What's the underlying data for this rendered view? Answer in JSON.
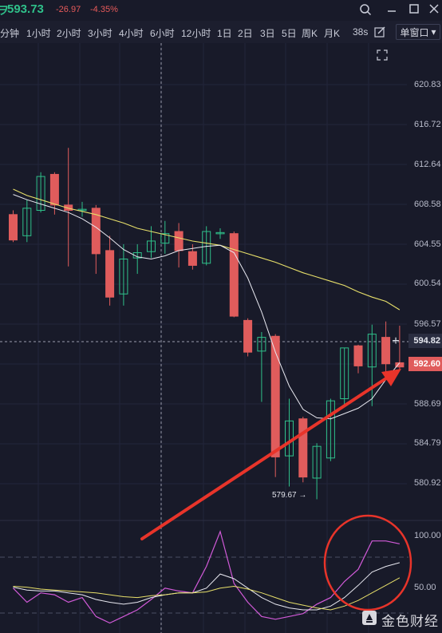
{
  "header": {
    "symbol_glyph": "ヲ",
    "price": "593.73",
    "change": "-26.97",
    "change_pct": "-4.35%"
  },
  "intervals": [
    "分钟",
    "1小时",
    "2小时",
    "3小时",
    "4小时",
    "6小时",
    "12小时",
    "1日",
    "2日",
    "3日",
    "5日",
    "周K",
    "月K"
  ],
  "refresh_label": "38s",
  "window_select": {
    "label": "单窗口",
    "caret": "▾"
  },
  "price_axis": {
    "labels": [
      "620.83",
      "616.72",
      "612.64",
      "608.58",
      "604.55",
      "600.54",
      "596.57",
      "588.69",
      "584.79",
      "580.92"
    ]
  },
  "price_tags": {
    "current": "594.82",
    "last": "592.60"
  },
  "low_marker": "579.67 →",
  "indicator_axis": {
    "labels": [
      "100.00",
      "50.00"
    ]
  },
  "watermark": "金色财经",
  "colors": {
    "up": "#2fc08a",
    "down": "#e05c5c",
    "ma_yellow": "#e8e06a",
    "ma_white": "#e8e8f0",
    "ind_pink": "#d15ad8",
    "arrow": "#e8342a",
    "circle": "#e8342a"
  },
  "chart_data": {
    "type": "candlestick",
    "ylim": [
      578.0,
      622.5
    ],
    "candles": [
      {
        "o": 606.6,
        "c": 604.2,
        "h": 607.0,
        "l": 604.0
      },
      {
        "o": 604.6,
        "c": 607.2,
        "h": 608.0,
        "l": 604.0
      },
      {
        "o": 607.0,
        "c": 610.2,
        "h": 610.6,
        "l": 606.8
      },
      {
        "o": 610.4,
        "c": 607.5,
        "h": 610.6,
        "l": 606.6
      },
      {
        "o": 607.5,
        "c": 607.0,
        "h": 612.9,
        "l": 601.7
      },
      {
        "o": 607.1,
        "c": 607.1,
        "h": 607.8,
        "l": 606.4
      },
      {
        "o": 607.2,
        "c": 602.9,
        "h": 607.5,
        "l": 601.0
      },
      {
        "o": 603.2,
        "c": 598.8,
        "h": 604.6,
        "l": 598.0
      },
      {
        "o": 599.1,
        "c": 602.4,
        "h": 603.8,
        "l": 598.0
      },
      {
        "o": 602.5,
        "c": 603.0,
        "h": 603.8,
        "l": 601.0
      },
      {
        "o": 603.1,
        "c": 604.1,
        "h": 605.5,
        "l": 602.5
      },
      {
        "o": 603.9,
        "c": 604.8,
        "h": 606.0,
        "l": 602.9
      },
      {
        "o": 605.0,
        "c": 603.2,
        "h": 605.8,
        "l": 601.6
      },
      {
        "o": 603.1,
        "c": 601.8,
        "h": 603.8,
        "l": 601.4
      },
      {
        "o": 602.0,
        "c": 605.0,
        "h": 605.5,
        "l": 601.8
      },
      {
        "o": 604.8,
        "c": 604.9,
        "h": 605.3,
        "l": 604.3
      },
      {
        "o": 604.8,
        "c": 597.0,
        "h": 605.0,
        "l": 596.9
      },
      {
        "o": 596.6,
        "c": 593.6,
        "h": 596.8,
        "l": 593.2
      },
      {
        "o": 593.7,
        "c": 595.0,
        "h": 595.5,
        "l": 588.9
      },
      {
        "o": 595.1,
        "c": 583.7,
        "h": 595.3,
        "l": 581.8
      },
      {
        "o": 583.8,
        "c": 587.1,
        "h": 589.2,
        "l": 580.9
      },
      {
        "o": 587.3,
        "c": 581.8,
        "h": 587.5,
        "l": 581.3
      },
      {
        "o": 581.7,
        "c": 584.7,
        "h": 585.0,
        "l": 579.7
      },
      {
        "o": 583.6,
        "c": 589.0,
        "h": 589.2,
        "l": 583.3
      },
      {
        "o": 589.2,
        "c": 594.0,
        "h": 594.0,
        "l": 588.5
      },
      {
        "o": 594.2,
        "c": 592.3,
        "h": 594.3,
        "l": 591.6
      },
      {
        "o": 592.2,
        "c": 595.3,
        "h": 596.2,
        "l": 588.5
      },
      {
        "o": 595.0,
        "c": 592.5,
        "h": 596.5,
        "l": 591.3
      },
      {
        "o": 592.6,
        "c": 592.2,
        "h": 596.1,
        "l": 592.0
      }
    ],
    "ma_yellow": [
      609.0,
      608.4,
      608.0,
      607.6,
      607.2,
      606.9,
      606.6,
      606.2,
      605.8,
      605.3,
      605.0,
      604.7,
      604.4,
      604.1,
      603.9,
      603.7,
      603.3,
      602.9,
      602.5,
      602.1,
      601.6,
      601.1,
      600.7,
      600.3,
      599.9,
      599.3,
      598.8,
      598.4,
      597.6
    ],
    "ma_white": [
      608.5,
      608.0,
      607.6,
      607.2,
      606.8,
      606.2,
      605.4,
      604.4,
      603.3,
      602.6,
      602.4,
      602.7,
      603.2,
      603.4,
      603.6,
      603.7,
      603.0,
      600.6,
      597.4,
      593.6,
      590.4,
      588.2,
      587.4,
      587.3,
      587.8,
      588.3,
      589.2,
      591.0,
      592.6
    ],
    "indicator": {
      "ylim": [
        0,
        110
      ],
      "pink": [
        45,
        30,
        40,
        38,
        30,
        35,
        15,
        8,
        15,
        22,
        33,
        45,
        42,
        40,
        68,
        105,
        50,
        30,
        15,
        12,
        15,
        18,
        28,
        35,
        52,
        65,
        95,
        95,
        92
      ],
      "white": [
        46,
        43,
        42,
        42,
        40,
        38,
        33,
        30,
        28,
        30,
        35,
        38,
        40,
        40,
        45,
        60,
        55,
        45,
        35,
        28,
        24,
        22,
        22,
        26,
        35,
        48,
        62,
        68,
        72
      ],
      "yellow": [
        47,
        46,
        44,
        43,
        42,
        41,
        40,
        38,
        36,
        35,
        37,
        38,
        40,
        40,
        41,
        45,
        47,
        44,
        40,
        35,
        30,
        27,
        24,
        22,
        26,
        32,
        40,
        48,
        56
      ]
    }
  }
}
